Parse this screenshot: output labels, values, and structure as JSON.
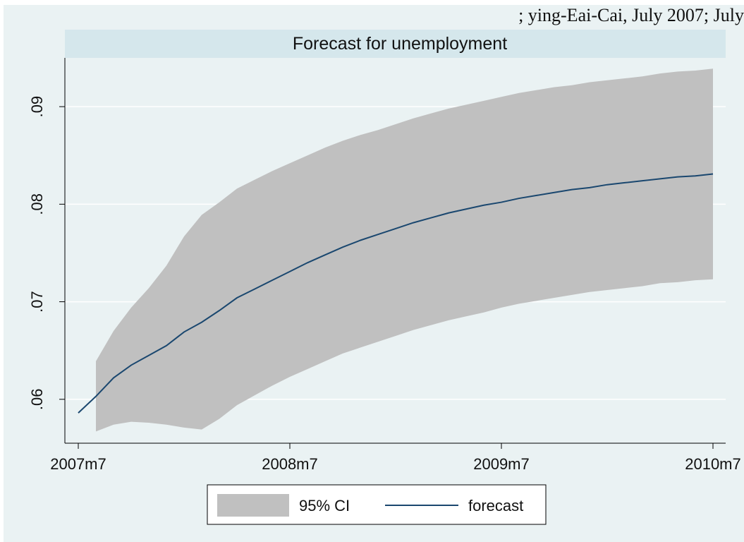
{
  "header": {
    "cropped_note": "; ying-Eai-Cai, July 2007; July"
  },
  "colors": {
    "background": "#eaf2f3",
    "title_bar": "#d5e7ec",
    "grid": "#ffffff",
    "ci_band": "#c0c0c0",
    "forecast_line": "#1a476f"
  },
  "chart_data": {
    "type": "area",
    "title": "Forecast for unemployment",
    "xlabel": "",
    "ylabel": "",
    "x_ticks": [
      "2007m7",
      "2008m7",
      "2009m7",
      "2010m7"
    ],
    "y_ticks": [
      ".06",
      ".07",
      ".08",
      ".09"
    ],
    "xlim": [
      "2007m7",
      "2010m7"
    ],
    "ylim": [
      0.0555,
      0.095
    ],
    "grid": true,
    "legend_position": "bottom",
    "x": [
      "2007m7",
      "2007m8",
      "2007m9",
      "2007m10",
      "2007m11",
      "2007m12",
      "2008m1",
      "2008m2",
      "2008m3",
      "2008m4",
      "2008m5",
      "2008m6",
      "2008m7",
      "2008m8",
      "2008m9",
      "2008m10",
      "2008m11",
      "2008m12",
      "2009m1",
      "2009m2",
      "2009m3",
      "2009m4",
      "2009m5",
      "2009m6",
      "2009m7",
      "2009m8",
      "2009m9",
      "2009m10",
      "2009m11",
      "2009m12",
      "2010m1",
      "2010m2",
      "2010m3",
      "2010m4",
      "2010m5",
      "2010m6",
      "2010m7"
    ],
    "series": [
      {
        "name": "95% CI",
        "type": "band",
        "start": "2007m8",
        "lower": [
          0.0567,
          0.0574,
          0.0577,
          0.0576,
          0.0574,
          0.0571,
          0.0569,
          0.058,
          0.0594,
          0.0604,
          0.0614,
          0.0623,
          0.0631,
          0.0639,
          0.0647,
          0.0653,
          0.0659,
          0.0665,
          0.0671,
          0.0676,
          0.0681,
          0.0685,
          0.0689,
          0.0694,
          0.0698,
          0.0701,
          0.0704,
          0.0707,
          0.071,
          0.0712,
          0.0714,
          0.0716,
          0.0719,
          0.072,
          0.0722,
          0.0723
        ],
        "upper": [
          0.0639,
          0.067,
          0.0694,
          0.0714,
          0.0737,
          0.0767,
          0.0789,
          0.0802,
          0.0816,
          0.0825,
          0.0834,
          0.0842,
          0.085,
          0.0858,
          0.0865,
          0.0871,
          0.0876,
          0.0882,
          0.0888,
          0.0893,
          0.0898,
          0.0902,
          0.0906,
          0.091,
          0.0914,
          0.0917,
          0.092,
          0.0922,
          0.0925,
          0.0927,
          0.0929,
          0.0931,
          0.0934,
          0.0936,
          0.0937,
          0.0939
        ]
      },
      {
        "name": "forecast",
        "type": "line",
        "values": [
          0.0586,
          0.0603,
          0.0622,
          0.0635,
          0.0645,
          0.0655,
          0.0669,
          0.0679,
          0.0691,
          0.0704,
          0.0713,
          0.0722,
          0.0731,
          0.074,
          0.0748,
          0.0756,
          0.0763,
          0.0769,
          0.0775,
          0.0781,
          0.0786,
          0.0791,
          0.0795,
          0.0799,
          0.0802,
          0.0806,
          0.0809,
          0.0812,
          0.0815,
          0.0817,
          0.082,
          0.0822,
          0.0824,
          0.0826,
          0.0828,
          0.0829,
          0.0831
        ]
      }
    ]
  }
}
